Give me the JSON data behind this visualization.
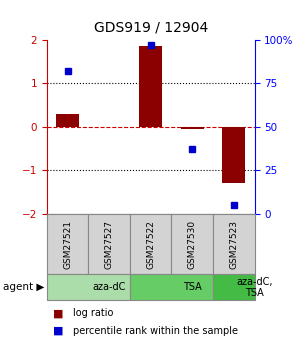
{
  "title": "GDS919 / 12904",
  "samples": [
    "GSM27521",
    "GSM27527",
    "GSM27522",
    "GSM27530",
    "GSM27523"
  ],
  "log_ratios": [
    0.3,
    0.0,
    1.85,
    -0.05,
    -1.3
  ],
  "percentiles": [
    82,
    null,
    97,
    37,
    5
  ],
  "bar_color": "#8B0000",
  "dot_color": "#0000CD",
  "ylim": [
    -2,
    2
  ],
  "y2lim": [
    0,
    100
  ],
  "yticks": [
    -2,
    -1,
    0,
    1,
    2
  ],
  "y2ticks": [
    0,
    25,
    50,
    75,
    100
  ],
  "y2ticklabels": [
    "0",
    "25",
    "50",
    "75",
    "100%"
  ],
  "hline_color_red": "#CC0000",
  "hline_color_black": "#000000",
  "agent_groups": [
    {
      "label": "aza-dC",
      "span": [
        0,
        2
      ],
      "color": "#AADDAA"
    },
    {
      "label": "TSA",
      "span": [
        2,
        4
      ],
      "color": "#66CC66"
    },
    {
      "label": "aza-dC,\nTSA",
      "span": [
        4,
        5
      ],
      "color": "#44BB44"
    }
  ],
  "legend_items": [
    {
      "color": "#8B0000",
      "label": " log ratio"
    },
    {
      "color": "#0000CD",
      "label": " percentile rank within the sample"
    }
  ],
  "bar_width": 0.55
}
